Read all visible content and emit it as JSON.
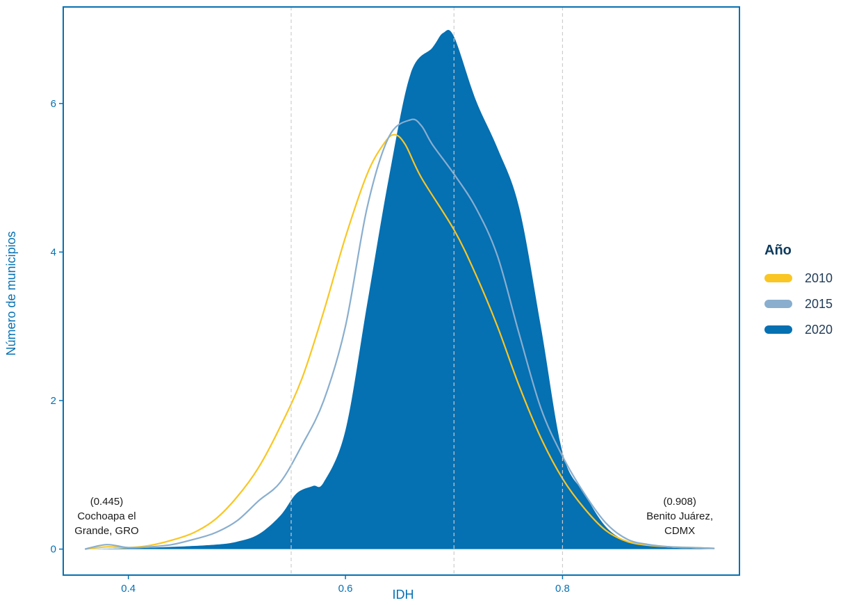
{
  "chart_data": {
    "type": "area",
    "title": "",
    "xlabel": "IDH",
    "ylabel": "Número de municipios",
    "xlim": [
      0.34,
      0.963
    ],
    "ylim": [
      -0.35,
      7.3
    ],
    "x_ticks": [
      0.4,
      0.6,
      0.8
    ],
    "x_tick_labels": [
      "0.4",
      "0.6",
      "0.8"
    ],
    "y_ticks": [
      0,
      2,
      4,
      6
    ],
    "y_tick_labels": [
      "0",
      "2",
      "4",
      "6"
    ],
    "reference_lines_x": [
      0.55,
      0.7,
      0.8
    ],
    "grid": false,
    "legend": {
      "title": "Año",
      "position": "right",
      "entries": [
        "2010",
        "2015",
        "2020"
      ]
    },
    "series": [
      {
        "name": "2010",
        "color": "#F9C623",
        "style": "line",
        "x": [
          0.36,
          0.38,
          0.4,
          0.42,
          0.44,
          0.46,
          0.48,
          0.5,
          0.52,
          0.54,
          0.56,
          0.58,
          0.6,
          0.62,
          0.635,
          0.645,
          0.655,
          0.67,
          0.7,
          0.72,
          0.74,
          0.76,
          0.78,
          0.8,
          0.82,
          0.84,
          0.86,
          0.88,
          0.9,
          0.92,
          0.94
        ],
        "y": [
          0.0,
          0.03,
          0.02,
          0.05,
          0.12,
          0.22,
          0.4,
          0.7,
          1.1,
          1.65,
          2.3,
          3.2,
          4.2,
          5.05,
          5.45,
          5.58,
          5.45,
          5.0,
          4.3,
          3.7,
          3.0,
          2.2,
          1.5,
          0.95,
          0.55,
          0.25,
          0.1,
          0.05,
          0.03,
          0.02,
          0.01
        ]
      },
      {
        "name": "2015",
        "color": "#89AECE",
        "style": "line",
        "x": [
          0.36,
          0.38,
          0.4,
          0.42,
          0.44,
          0.46,
          0.48,
          0.5,
          0.52,
          0.54,
          0.56,
          0.58,
          0.6,
          0.62,
          0.64,
          0.66,
          0.67,
          0.68,
          0.7,
          0.72,
          0.74,
          0.76,
          0.78,
          0.8,
          0.82,
          0.84,
          0.86,
          0.88,
          0.9,
          0.92,
          0.94
        ],
        "y": [
          0.0,
          0.06,
          0.02,
          0.03,
          0.06,
          0.13,
          0.22,
          0.38,
          0.65,
          0.9,
          1.4,
          2.0,
          3.0,
          4.6,
          5.55,
          5.78,
          5.7,
          5.45,
          5.05,
          4.6,
          3.95,
          2.9,
          1.9,
          1.25,
          0.75,
          0.35,
          0.13,
          0.06,
          0.03,
          0.02,
          0.01
        ]
      },
      {
        "name": "2020",
        "color": "#0570B2",
        "style": "filled",
        "x": [
          0.36,
          0.4,
          0.44,
          0.48,
          0.5,
          0.52,
          0.54,
          0.555,
          0.57,
          0.58,
          0.6,
          0.62,
          0.64,
          0.66,
          0.68,
          0.69,
          0.7,
          0.72,
          0.74,
          0.76,
          0.78,
          0.8,
          0.82,
          0.84,
          0.86,
          0.88,
          0.9,
          0.92,
          0.94
        ],
        "y": [
          0.0,
          0.01,
          0.03,
          0.06,
          0.1,
          0.2,
          0.45,
          0.75,
          0.85,
          0.9,
          1.6,
          3.3,
          5.0,
          6.4,
          6.75,
          6.95,
          6.9,
          6.05,
          5.4,
          4.6,
          3.0,
          1.3,
          0.75,
          0.3,
          0.1,
          0.05,
          0.02,
          0.01,
          0.01
        ]
      }
    ],
    "annotations": [
      {
        "x": 0.38,
        "lines": [
          "(0.445)",
          "Cochoapa el",
          "Grande, GRO"
        ]
      },
      {
        "x": 0.908,
        "lines": [
          "(0.908)",
          "Benito Juárez,",
          "CDMX"
        ]
      }
    ],
    "colors": {
      "axis": "#0570B2",
      "reference_line": "#cccccc"
    }
  }
}
